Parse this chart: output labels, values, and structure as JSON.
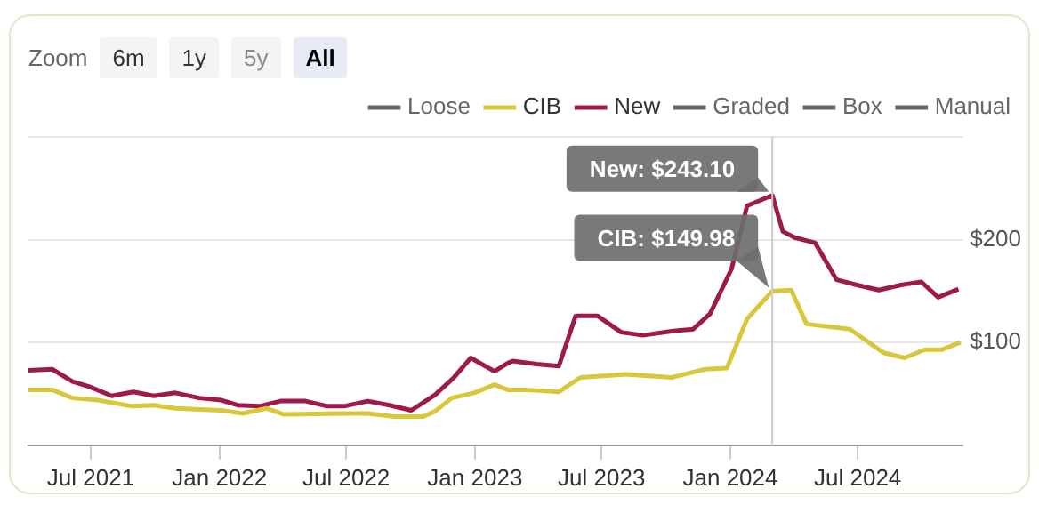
{
  "chart_data": {
    "type": "line",
    "x": [
      "2021-04-03",
      "2021-05-07",
      "2021-06-05",
      "2021-06-29",
      "2021-07-31",
      "2021-08-31",
      "2021-09-29",
      "2021-10-30",
      "2021-12-03",
      "2022-01-03",
      "2022-01-27",
      "2022-02-27",
      "2022-03-29",
      "2022-05-04",
      "2022-06-04",
      "2022-06-28",
      "2022-08-01",
      "2022-09-01",
      "2022-10-02",
      "2022-11-05",
      "2022-12-02",
      "2022-12-26",
      "2023-01-29",
      "2023-02-17",
      "2023-02-24",
      "2023-03-30",
      "2023-05-01",
      "2023-05-25",
      "2023-06-25",
      "2023-07-29",
      "2023-08-29",
      "2023-10-09",
      "2023-11-09",
      "2023-12-03",
      "2024-01-03",
      "2024-01-25",
      "2024-03-01",
      "2024-03-16",
      "2024-04-02",
      "2024-05-01",
      "2024-06-01",
      "2024-06-30",
      "2024-07-31",
      "2024-09-01",
      "2024-09-30",
      "2024-10-24",
      "2024-11-22"
    ],
    "series": [
      {
        "name": "Loose",
        "color": "#666666",
        "values": [
          null,
          null,
          null,
          null,
          null,
          null,
          null,
          null,
          null,
          null,
          null,
          null,
          null,
          null,
          null,
          null,
          null,
          null,
          null,
          null,
          null,
          null,
          null,
          null,
          null,
          null,
          null,
          null,
          null,
          null,
          null,
          null,
          null,
          null,
          null,
          null,
          null,
          null,
          null,
          null,
          null,
          null,
          null,
          null,
          null,
          null,
          null
        ]
      },
      {
        "name": "CIB",
        "color": "#d8c73a",
        "x": [
          "2021-04-03",
          "2021-05-07",
          "2021-06-05",
          "2021-07-11",
          "2021-08-29",
          "2021-09-29",
          "2021-10-30",
          "2022-01-03",
          "2022-02-03",
          "2022-03-09",
          "2022-04-03",
          "2022-06-28",
          "2022-08-01",
          "2022-09-08",
          "2022-10-19",
          "2022-11-05",
          "2022-11-29",
          "2022-12-31",
          "2023-01-29",
          "2023-02-17",
          "2023-03-13",
          "2023-05-01",
          "2023-06-01",
          "2023-08-05",
          "2023-10-09",
          "2023-11-26",
          "2023-12-27",
          "2024-01-25",
          "2024-03-01",
          "2024-03-28",
          "2024-04-19",
          "2024-06-20",
          "2024-08-07",
          "2024-09-06",
          "2024-10-05",
          "2024-10-29",
          "2024-11-25"
        ],
        "values": [
          54,
          54,
          46,
          44,
          38,
          39,
          36,
          34,
          31,
          36,
          30,
          31,
          31,
          28,
          28,
          33,
          46,
          51,
          59,
          54,
          54,
          52,
          66,
          69,
          66,
          74,
          75,
          123,
          149.98,
          151,
          118,
          113,
          90,
          85,
          93,
          93,
          100
        ]
      },
      {
        "name": "New",
        "color": "#9c1a4c",
        "values": [
          73,
          74,
          62,
          57,
          48,
          52,
          48,
          51,
          46,
          44,
          39,
          38,
          43,
          43,
          38,
          38,
          43,
          39,
          34,
          49,
          66,
          85,
          72,
          80,
          82,
          79,
          77,
          126,
          126,
          110,
          107,
          111,
          113,
          128,
          172,
          233,
          243.1,
          208,
          202,
          197,
          161,
          156,
          151,
          156,
          159,
          144,
          152
        ]
      },
      {
        "name": "Graded",
        "color": "#666666",
        "values": [
          null,
          null,
          null,
          null,
          null,
          null,
          null,
          null,
          null,
          null,
          null,
          null,
          null,
          null,
          null,
          null,
          null,
          null,
          null,
          null,
          null,
          null,
          null,
          null,
          null,
          null,
          null,
          null,
          null,
          null,
          null,
          null,
          null,
          null,
          null,
          null,
          null,
          null,
          null,
          null,
          null,
          null,
          null,
          null,
          null,
          null,
          null
        ]
      },
      {
        "name": "Box",
        "color": "#666666",
        "values": [
          null,
          null,
          null,
          null,
          null,
          null,
          null,
          null,
          null,
          null,
          null,
          null,
          null,
          null,
          null,
          null,
          null,
          null,
          null,
          null,
          null,
          null,
          null,
          null,
          null,
          null,
          null,
          null,
          null,
          null,
          null,
          null,
          null,
          null,
          null,
          null,
          null,
          null,
          null,
          null,
          null,
          null,
          null,
          null,
          null,
          null,
          null
        ]
      },
      {
        "name": "Manual",
        "color": "#666666",
        "values": [
          null,
          null,
          null,
          null,
          null,
          null,
          null,
          null,
          null,
          null,
          null,
          null,
          null,
          null,
          null,
          null,
          null,
          null,
          null,
          null,
          null,
          null,
          null,
          null,
          null,
          null,
          null,
          null,
          null,
          null,
          null,
          null,
          null,
          null,
          null,
          null,
          null,
          null,
          null,
          null,
          null,
          null,
          null,
          null,
          null,
          null,
          null
        ]
      }
    ],
    "xlim": [
      "2021-04-03",
      "2024-11-28"
    ],
    "xticks": [
      {
        "value": "2021-07-01",
        "label": "Jul 2021"
      },
      {
        "value": "2022-01-01",
        "label": "Jan 2022"
      },
      {
        "value": "2022-07-01",
        "label": "Jul 2022"
      },
      {
        "value": "2023-01-01",
        "label": "Jan 2023"
      },
      {
        "value": "2023-07-01",
        "label": "Jul 2023"
      },
      {
        "value": "2024-01-01",
        "label": "Jan 2024"
      },
      {
        "value": "2024-07-01",
        "label": "Jul 2024"
      }
    ],
    "ylim": [
      0,
      300
    ],
    "yticks": [
      {
        "value": 0,
        "label": null
      },
      {
        "value": 100,
        "label": "$100"
      },
      {
        "value": 200,
        "label": "$200"
      },
      {
        "value": 300,
        "label": null
      }
    ],
    "grid": "y",
    "legend": "top right",
    "ref_lines": [
      {
        "axis": "x",
        "value": "2024-03-01",
        "color": "#cccccc"
      }
    ],
    "annotations": [
      "Zoom",
      "6m",
      "1y",
      "5y",
      "All",
      {
        "text": "New: $243.10",
        "x": "2024-03-01",
        "y": 243.1
      },
      {
        "text": "CIB: $149.98",
        "x": "2024-03-01",
        "y": 149.98
      }
    ]
  }
}
